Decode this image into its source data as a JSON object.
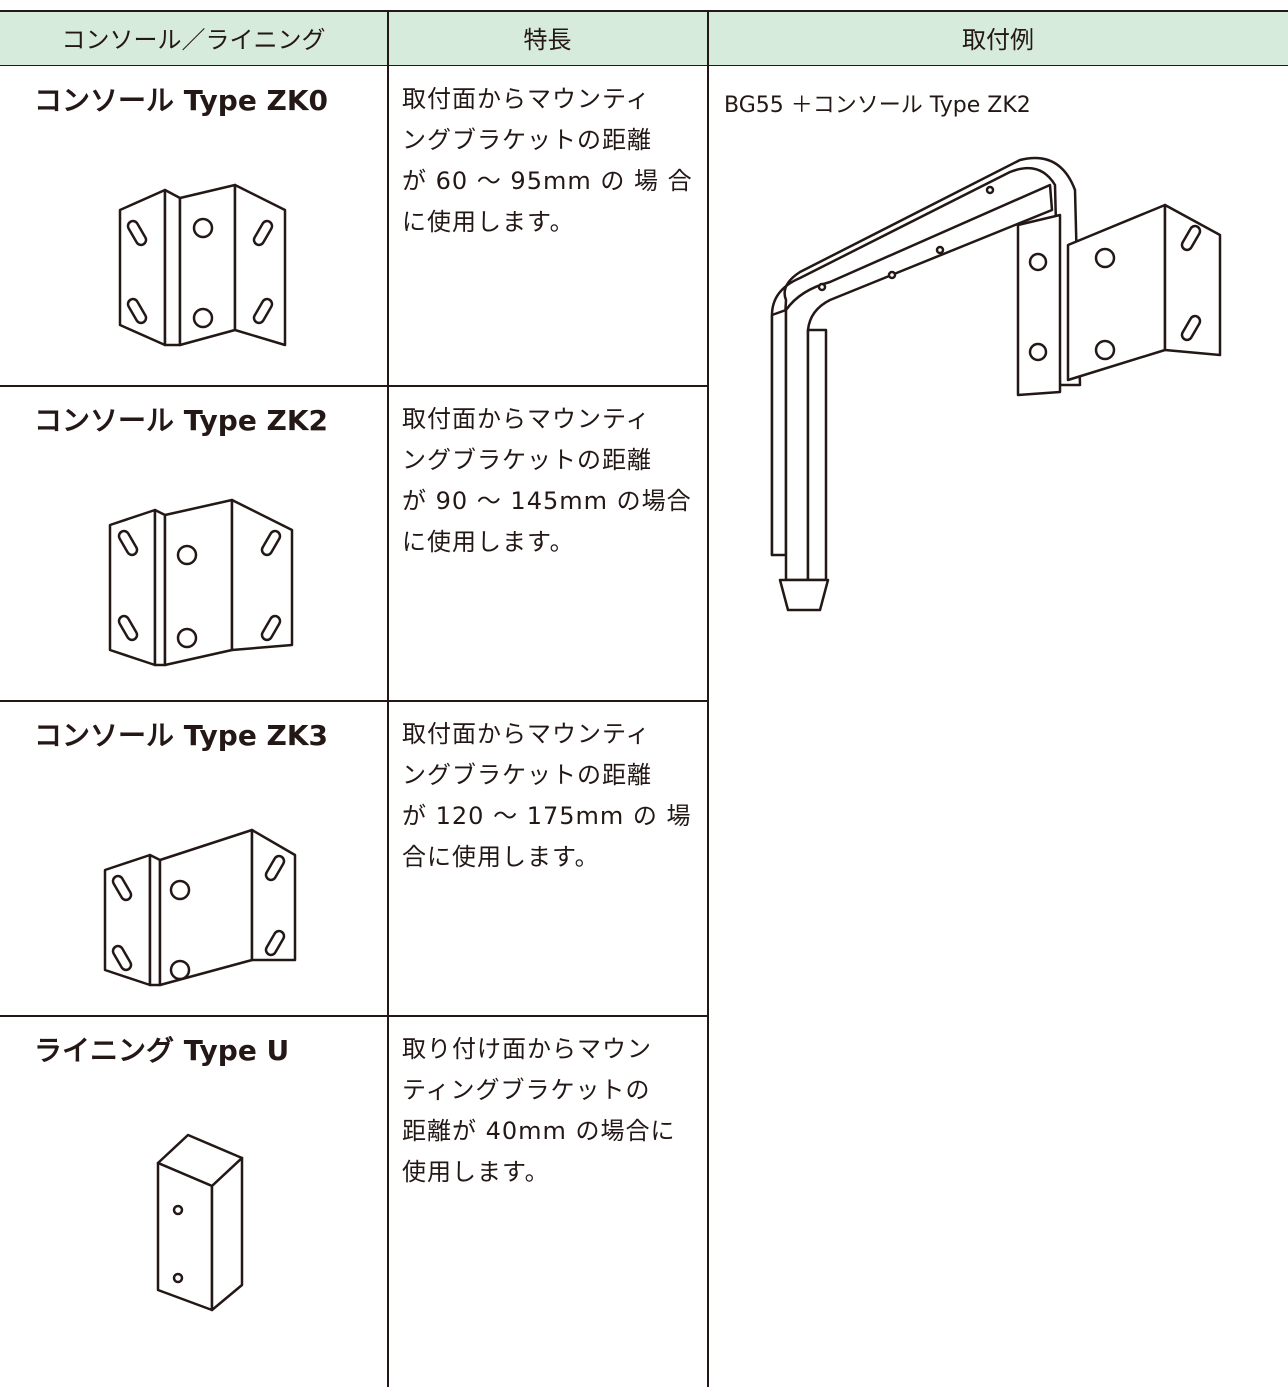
{
  "table": {
    "header": [
      "コンソール／ライニング",
      "特長",
      "取付例"
    ],
    "rows": [
      {
        "name": "コンソール Type ZK0",
        "feature": [
          "取付面からマウンティ",
          "ングブラケットの距離",
          "が 60 ～ 95mm の 場 合",
          "に使用します。"
        ]
      },
      {
        "name": "コンソール Type ZK2",
        "feature": [
          "取付面からマウンティ",
          "ングブラケットの距離",
          "が 90 ～ 145mm の場合",
          "に使用します。"
        ]
      },
      {
        "name": "コンソール Type ZK3",
        "feature": [
          "取付面からマウンティ",
          "ングブラケットの距離",
          "が 120 ～ 175mm の 場",
          "合に使用します。"
        ]
      },
      {
        "name": "ライニング Type U",
        "feature": [
          "取り付け面からマウン",
          "ティングブラケットの",
          "距離が 40mm の場合に",
          "使用します。"
        ]
      }
    ],
    "example": "BG55 ＋コンソール Type ZK2"
  }
}
